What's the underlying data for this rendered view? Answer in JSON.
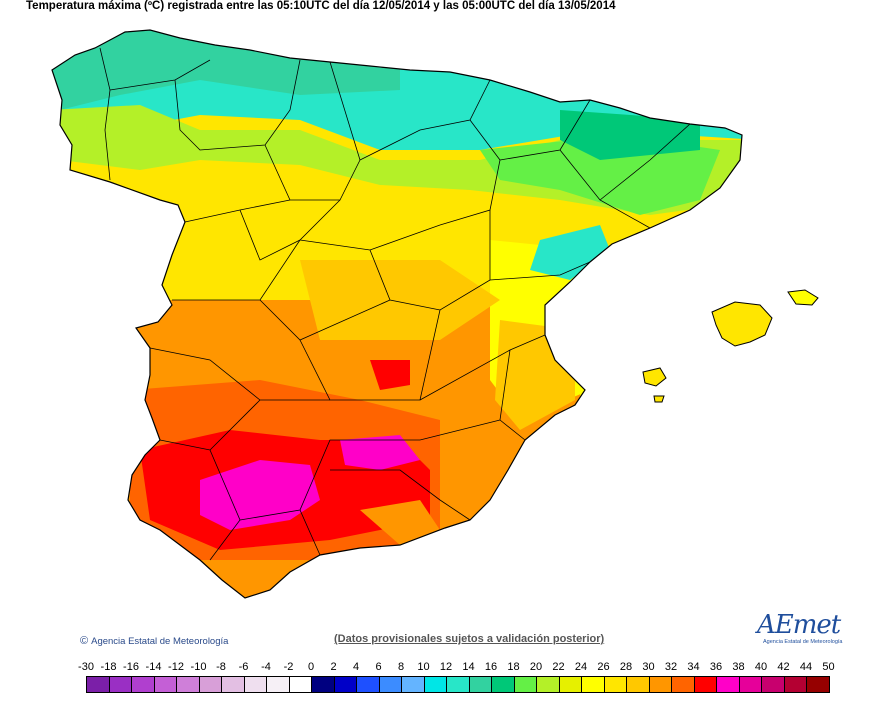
{
  "title": "Temperatura máxima (ºC) registrada entre las 05:10UTC del día 12/05/2014 y las 05:00UTC del día 13/05/2014",
  "copyright": "Agencia Estatal de Meteorología",
  "disclaimer": "(Datos provisionales sujetos a validación posterior)",
  "logo": {
    "text": "AEmet",
    "subtitle": "Agencia Estatal de Meteorología"
  },
  "legend": {
    "labels": [
      "-30",
      "-18",
      "-16",
      "-14",
      "-12",
      "-10",
      "-8",
      "-6",
      "-4",
      "-2",
      "0",
      "2",
      "4",
      "6",
      "8",
      "10",
      "12",
      "14",
      "16",
      "18",
      "20",
      "22",
      "24",
      "26",
      "28",
      "30",
      "32",
      "34",
      "36",
      "38",
      "40",
      "42",
      "44",
      "50"
    ],
    "colors": [
      "#7b1fa8",
      "#9a2fc4",
      "#b03fcf",
      "#c45fd6",
      "#cf7fd9",
      "#d89fd8",
      "#e3bfe3",
      "#efdfef",
      "#f6f0f6",
      "#ffffff",
      "#000080",
      "#0000c8",
      "#1e50ff",
      "#3c8cff",
      "#64b4ff",
      "#00e6e6",
      "#28e6c8",
      "#32d2a0",
      "#00c878",
      "#64f046",
      "#b4f028",
      "#e6f000",
      "#ffff00",
      "#ffe600",
      "#ffc800",
      "#ff9600",
      "#ff6400",
      "#ff0000",
      "#ff00c8",
      "#e6009a",
      "#c8006e",
      "#b40032",
      "#960000"
    ]
  }
}
